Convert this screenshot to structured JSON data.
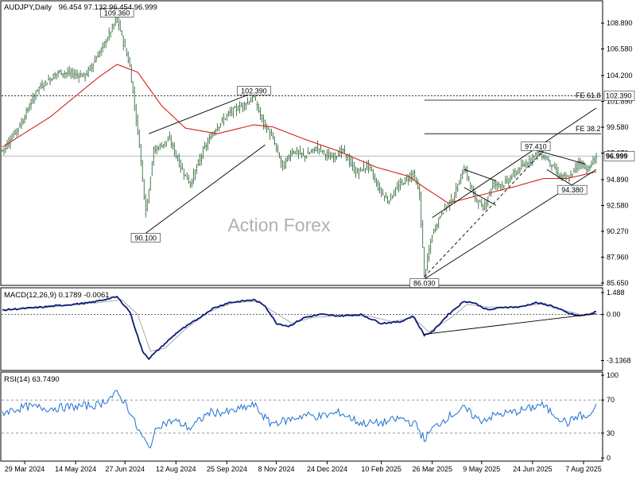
{
  "chart_data": [
    {
      "type": "candlestick",
      "title": "AUDJPY,Daily",
      "ohlc_text": "96.454 97.132 96.454 96.999",
      "watermark": "Action Forex",
      "y_ticks": [
        "108.890",
        "106.580",
        "104.200",
        "101.890",
        "99.580",
        "97.270",
        "94.890",
        "92.580",
        "90.270",
        "87.960",
        "85.650"
      ],
      "y_tick_values": [
        108.89,
        106.58,
        104.2,
        101.89,
        99.58,
        97.27,
        94.89,
        92.58,
        90.27,
        87.96,
        85.65
      ],
      "ylim": [
        85.65,
        110.6
      ],
      "current_price": "96.999",
      "current_price_value": 96.999,
      "level_label": "102.390",
      "level_value": 102.39,
      "fe_levels": [
        {
          "label": "FE 61.8",
          "value": 102.0
        },
        {
          "label": "FE 38.2",
          "value": 99.0
        }
      ],
      "annotations": [
        {
          "text": "109.360",
          "value": 109.36,
          "bar": 72
        },
        {
          "text": "102.390",
          "value": 102.39,
          "bar": 158
        },
        {
          "text": "90.100",
          "value": 90.1,
          "bar": 90
        },
        {
          "text": "86.030",
          "value": 86.03,
          "bar": 265
        },
        {
          "text": "97.410",
          "value": 97.41,
          "bar": 335
        },
        {
          "text": "94.380",
          "value": 94.38,
          "bar": 358
        }
      ],
      "anchors": [
        [
          0,
          97.5
        ],
        [
          12,
          100.0
        ],
        [
          22,
          103.0
        ],
        [
          35,
          104.5
        ],
        [
          52,
          104.2
        ],
        [
          62,
          106.5
        ],
        [
          72,
          109.3
        ],
        [
          80,
          105.0
        ],
        [
          86,
          98.0
        ],
        [
          90,
          92.0
        ],
        [
          95,
          97.5
        ],
        [
          105,
          98.5
        ],
        [
          112,
          96.0
        ],
        [
          118,
          94.5
        ],
        [
          126,
          97.5
        ],
        [
          134,
          99.5
        ],
        [
          142,
          100.8
        ],
        [
          150,
          101.5
        ],
        [
          158,
          102.2
        ],
        [
          163,
          100.2
        ],
        [
          170,
          98.5
        ],
        [
          176,
          96.0
        ],
        [
          182,
          97.5
        ],
        [
          190,
          97.0
        ],
        [
          198,
          97.8
        ],
        [
          206,
          96.8
        ],
        [
          214,
          97.5
        ],
        [
          222,
          95.5
        ],
        [
          230,
          96.2
        ],
        [
          236,
          94.2
        ],
        [
          242,
          93.0
        ],
        [
          250,
          94.5
        ],
        [
          258,
          95.5
        ],
        [
          262,
          93.5
        ],
        [
          265,
          86.3
        ],
        [
          270,
          90.0
        ],
        [
          276,
          92.0
        ],
        [
          284,
          93.5
        ],
        [
          290,
          96.0
        ],
        [
          296,
          93.5
        ],
        [
          302,
          92.3
        ],
        [
          308,
          94.5
        ],
        [
          315,
          94.5
        ],
        [
          322,
          95.5
        ],
        [
          330,
          96.5
        ],
        [
          336,
          97.3
        ],
        [
          342,
          96.8
        ],
        [
          350,
          95.2
        ],
        [
          356,
          95.0
        ],
        [
          362,
          96.5
        ],
        [
          368,
          95.8
        ],
        [
          373,
          97.0
        ]
      ],
      "ma_anchors": [
        [
          0,
          97.8
        ],
        [
          30,
          100.5
        ],
        [
          60,
          104.0
        ],
        [
          72,
          105.2
        ],
        [
          85,
          104.5
        ],
        [
          100,
          101.5
        ],
        [
          115,
          99.5
        ],
        [
          135,
          99.0
        ],
        [
          158,
          99.8
        ],
        [
          170,
          99.6
        ],
        [
          190,
          98.5
        ],
        [
          210,
          97.5
        ],
        [
          235,
          96.0
        ],
        [
          255,
          95.2
        ],
        [
          265,
          94.2
        ],
        [
          280,
          92.8
        ],
        [
          300,
          93.5
        ],
        [
          320,
          94.2
        ],
        [
          340,
          95.0
        ],
        [
          355,
          95.0
        ],
        [
          373,
          95.6
        ]
      ],
      "x_ticks": [
        {
          "label": "29 Mar 2024",
          "bar": 14
        },
        {
          "label": "14 May 2024",
          "bar": 46
        },
        {
          "label": "27 Jun 2024",
          "bar": 77
        },
        {
          "label": "12 Aug 2024",
          "bar": 109
        },
        {
          "label": "25 Sep 2024",
          "bar": 141
        },
        {
          "label": "8 Nov 2024",
          "bar": 172
        },
        {
          "label": "24 Dec 2024",
          "bar": 204
        },
        {
          "label": "10 Feb 2025",
          "bar": 238
        },
        {
          "label": "26 Mar 2025",
          "bar": 270
        },
        {
          "label": "9 May 2025",
          "bar": 301
        },
        {
          "label": "24 Jun 2025",
          "bar": 333
        },
        {
          "label": "7 Aug 2025",
          "bar": 365
        }
      ],
      "bars": 374
    },
    {
      "type": "line",
      "title": "MACD(12,26,9) 0.1789 -0.0061",
      "y_ticks": [
        "1.488",
        "0.00",
        "-3.1368"
      ],
      "y_tick_values": [
        1.488,
        0.0,
        -3.1368
      ],
      "ylim": [
        -3.6,
        1.6
      ],
      "anchors": [
        [
          0,
          0.3
        ],
        [
          25,
          0.5
        ],
        [
          55,
          0.8
        ],
        [
          72,
          1.2
        ],
        [
          80,
          0.2
        ],
        [
          88,
          -2.5
        ],
        [
          92,
          -3.0
        ],
        [
          100,
          -2.2
        ],
        [
          110,
          -1.2
        ],
        [
          120,
          -0.5
        ],
        [
          132,
          0.4
        ],
        [
          142,
          0.8
        ],
        [
          158,
          1.0
        ],
        [
          165,
          0.6
        ],
        [
          172,
          -0.6
        ],
        [
          180,
          -0.8
        ],
        [
          190,
          -0.2
        ],
        [
          200,
          0.0
        ],
        [
          212,
          -0.1
        ],
        [
          225,
          0.0
        ],
        [
          238,
          -0.6
        ],
        [
          250,
          -0.5
        ],
        [
          258,
          -0.1
        ],
        [
          265,
          -1.4
        ],
        [
          270,
          -1.2
        ],
        [
          280,
          0.0
        ],
        [
          290,
          0.9
        ],
        [
          296,
          0.8
        ],
        [
          305,
          0.3
        ],
        [
          315,
          0.5
        ],
        [
          325,
          0.5
        ],
        [
          335,
          0.8
        ],
        [
          345,
          0.6
        ],
        [
          355,
          0.1
        ],
        [
          362,
          -0.1
        ],
        [
          368,
          0.0
        ],
        [
          373,
          0.18
        ]
      ],
      "signal_anchors": [
        [
          0,
          0.3
        ],
        [
          30,
          0.5
        ],
        [
          60,
          0.8
        ],
        [
          75,
          1.0
        ],
        [
          85,
          0.0
        ],
        [
          93,
          -2.5
        ],
        [
          102,
          -2.3
        ],
        [
          115,
          -1.0
        ],
        [
          130,
          0.2
        ],
        [
          145,
          0.8
        ],
        [
          160,
          0.9
        ],
        [
          170,
          0.2
        ],
        [
          182,
          -0.6
        ],
        [
          195,
          -0.2
        ],
        [
          212,
          -0.1
        ],
        [
          230,
          -0.1
        ],
        [
          245,
          -0.5
        ],
        [
          258,
          -0.2
        ],
        [
          268,
          -1.2
        ],
        [
          282,
          -0.2
        ],
        [
          292,
          0.7
        ],
        [
          305,
          0.5
        ],
        [
          320,
          0.5
        ],
        [
          338,
          0.7
        ],
        [
          352,
          0.3
        ],
        [
          365,
          -0.05
        ],
        [
          373,
          0.0
        ]
      ]
    },
    {
      "type": "line",
      "title": "RSI(14) 63.7490",
      "y_ticks": [
        "100",
        "70",
        "30",
        "0"
      ],
      "y_tick_values": [
        100,
        70,
        30,
        0
      ],
      "ylim": [
        0,
        100
      ],
      "levels": [
        70,
        30
      ],
      "anchors": [
        [
          0,
          55
        ],
        [
          15,
          62
        ],
        [
          30,
          60
        ],
        [
          45,
          62
        ],
        [
          60,
          64
        ],
        [
          72,
          78
        ],
        [
          78,
          65
        ],
        [
          85,
          35
        ],
        [
          92,
          12
        ],
        [
          98,
          40
        ],
        [
          108,
          45
        ],
        [
          118,
          36
        ],
        [
          130,
          55
        ],
        [
          142,
          55
        ],
        [
          158,
          64
        ],
        [
          168,
          42
        ],
        [
          178,
          45
        ],
        [
          190,
          52
        ],
        [
          200,
          50
        ],
        [
          212,
          55
        ],
        [
          225,
          42
        ],
        [
          238,
          42
        ],
        [
          250,
          48
        ],
        [
          260,
          40
        ],
        [
          265,
          22
        ],
        [
          270,
          35
        ],
        [
          280,
          50
        ],
        [
          290,
          60
        ],
        [
          300,
          45
        ],
        [
          310,
          52
        ],
        [
          320,
          55
        ],
        [
          332,
          60
        ],
        [
          338,
          65
        ],
        [
          345,
          55
        ],
        [
          355,
          42
        ],
        [
          362,
          52
        ],
        [
          368,
          48
        ],
        [
          373,
          63.7
        ]
      ]
    }
  ]
}
